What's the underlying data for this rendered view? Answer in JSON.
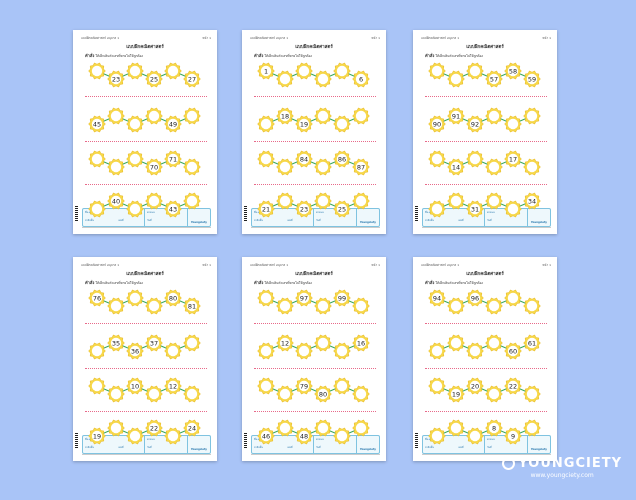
{
  "header": {
    "left": "แบบฝึกคณิตศาสตร์ อนุบาล 1",
    "right": "หน้า 1"
  },
  "title": "แบบฝึกคณิตศาสตร์",
  "instruction_label": "คำสั่ง",
  "instruction": "ให้เด็กเติมตัวเลขที่หายไปให้ถูกต้อง",
  "footer": {
    "name_label": "ชื่อ-สกุล",
    "class_label": "ระดับชั้น",
    "score_label": "คะแนน",
    "date_label": "วันที่",
    "number_label": "เลขที่",
    "logo": "Youngciety"
  },
  "brand": {
    "name": "YOUNGCIETY",
    "url": "www.youngciety.com"
  },
  "worksheets": [
    {
      "rows": [
        [
          "",
          "23",
          "",
          "25",
          "",
          "27"
        ],
        [
          "45",
          "",
          "",
          "",
          "49",
          ""
        ],
        [
          "",
          "",
          "",
          "70",
          "71",
          ""
        ],
        [
          "",
          "40",
          "",
          "",
          "43",
          ""
        ]
      ]
    },
    {
      "rows": [
        [
          "1",
          "",
          "",
          "",
          "",
          "6"
        ],
        [
          "",
          "18",
          "19",
          "",
          "",
          ""
        ],
        [
          "",
          "",
          "84",
          "",
          "86",
          "87"
        ],
        [
          "21",
          "",
          "23",
          "",
          "25",
          ""
        ]
      ]
    },
    {
      "rows": [
        [
          "",
          "",
          "",
          "57",
          "58",
          "59"
        ],
        [
          "90",
          "91",
          "92",
          "",
          "",
          ""
        ],
        [
          "",
          "14",
          "",
          "",
          "17",
          ""
        ],
        [
          "",
          "",
          "31",
          "",
          "",
          "34"
        ]
      ]
    },
    {
      "rows": [
        [
          "76",
          "",
          "",
          "",
          "80",
          "81"
        ],
        [
          "",
          "35",
          "36",
          "37",
          "",
          ""
        ],
        [
          "",
          "",
          "10",
          "",
          "12",
          ""
        ],
        [
          "19",
          "",
          "",
          "22",
          "",
          "24"
        ]
      ]
    },
    {
      "rows": [
        [
          "",
          "",
          "97",
          "",
          "99",
          ""
        ],
        [
          "",
          "12",
          "",
          "",
          "",
          "16"
        ],
        [
          "",
          "",
          "79",
          "80",
          "",
          ""
        ],
        [
          "46",
          "",
          "48",
          "",
          "",
          ""
        ]
      ]
    },
    {
      "rows": [
        [
          "94",
          "",
          "96",
          "",
          "",
          ""
        ],
        [
          "",
          "",
          "",
          "",
          "60",
          "61"
        ],
        [
          "",
          "19",
          "20",
          "",
          "22",
          ""
        ],
        [
          "",
          "",
          "",
          "8",
          "9",
          ""
        ]
      ]
    }
  ]
}
